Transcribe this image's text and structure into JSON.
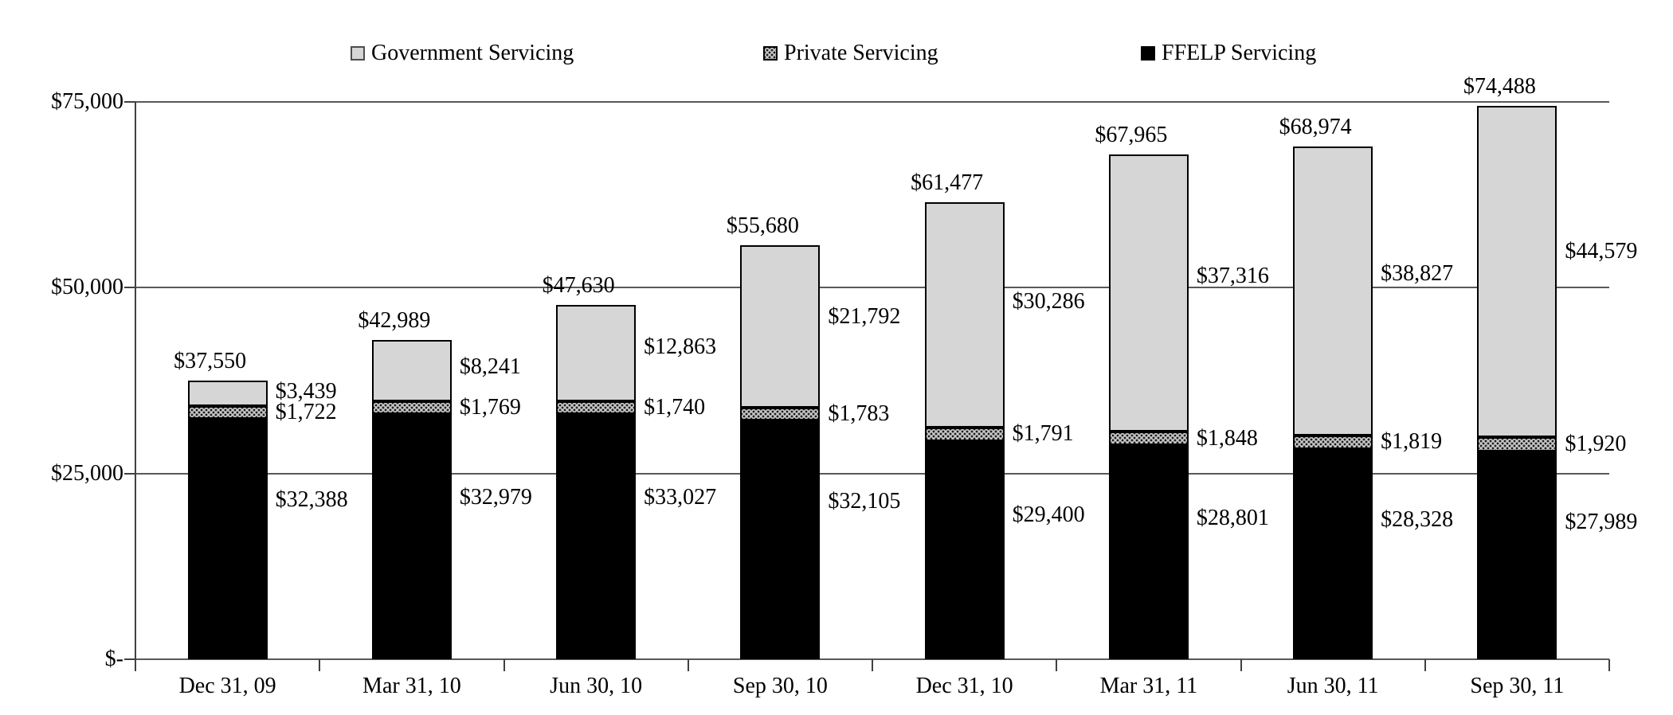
{
  "legend": {
    "items": [
      {
        "label": "Government Servicing"
      },
      {
        "label": "Private Servicing"
      },
      {
        "label": "FFELP Servicing"
      }
    ]
  },
  "y_axis": {
    "tick_labels": [
      "$75,000",
      "$50,000",
      "$25,000",
      "$-"
    ],
    "tick_values": [
      75000,
      50000,
      25000,
      0
    ]
  },
  "chart_data": {
    "type": "bar",
    "stacked": true,
    "title": "",
    "xlabel": "",
    "ylabel": "",
    "ylim": [
      0,
      75000
    ],
    "grid": "horizontal",
    "legend_position": "top",
    "categories": [
      "Dec 31, 09",
      "Mar 31, 10",
      "Jun 30, 10",
      "Sep 30, 10",
      "Dec 31, 10",
      "Mar 31, 11",
      "Jun 30, 11",
      "Sep 30, 11"
    ],
    "series": [
      {
        "name": "FFELP Servicing",
        "color": "#000000",
        "values": [
          32388,
          32979,
          33027,
          32105,
          29400,
          28801,
          28328,
          27989
        ],
        "labels": [
          "$32,388",
          "$32,979",
          "$33,027",
          "$32,105",
          "$29,400",
          "$28,801",
          "$28,328",
          "$27,989"
        ]
      },
      {
        "name": "Private Servicing",
        "color": "#cccccc",
        "pattern": "dots",
        "values": [
          1722,
          1769,
          1740,
          1783,
          1791,
          1848,
          1819,
          1920
        ],
        "labels": [
          "$1,722",
          "$1,769",
          "$1,740",
          "$1,783",
          "$1,791",
          "$1,848",
          "$1,819",
          "$1,920"
        ]
      },
      {
        "name": "Government Servicing",
        "color": "#d6d6d6",
        "values": [
          3439,
          8241,
          12863,
          21792,
          30286,
          37316,
          38827,
          44579
        ],
        "labels": [
          "$3,439",
          "$8,241",
          "$12,863",
          "$21,792",
          "$30,286",
          "$37,316",
          "$38,827",
          "$44,579"
        ]
      }
    ],
    "totals": [
      37550,
      42989,
      47630,
      55680,
      61477,
      67965,
      68974,
      74488
    ],
    "total_labels": [
      "$37,550",
      "$42,989",
      "$47,630",
      "$55,680",
      "$61,477",
      "$67,965",
      "$68,974",
      "$74,488"
    ]
  },
  "colors": {
    "government_fill": "#d6d6d6",
    "private_fill": "#cccccc",
    "ffelp_fill": "#000000",
    "gridline": "#595959",
    "background": "#ffffff"
  }
}
